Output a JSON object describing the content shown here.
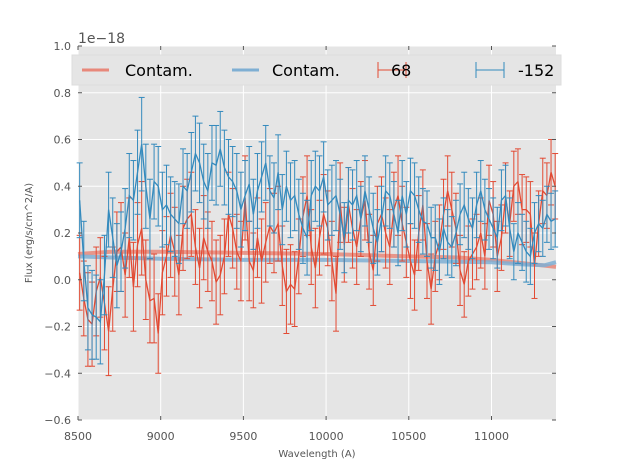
{
  "chart_data": {
    "type": "line",
    "title": "",
    "xlabel": "Wavelength (A)",
    "ylabel": "Flux (erg/s/cm^2/A)",
    "y_offset_label": "1e−18",
    "xlim": [
      8500,
      11390
    ],
    "ylim": [
      -0.6,
      1.0
    ],
    "xticks": [
      8500,
      9000,
      9500,
      10000,
      10500,
      11000
    ],
    "xtick_labels": [
      "8500",
      "9000",
      "9500",
      "10000",
      "10500",
      "11000"
    ],
    "yticks": [
      -0.6,
      -0.4,
      -0.2,
      0.0,
      0.2,
      0.4,
      0.6,
      0.8,
      1.0
    ],
    "ytick_labels": [
      "−0.6",
      "−0.4",
      "−0.2",
      "0.0",
      "0.2",
      "0.4",
      "0.6",
      "0.8",
      "1.0"
    ],
    "grid": true,
    "legend": {
      "placement": "top",
      "entries": [
        {
          "label": "Contam.",
          "kind": "line",
          "color": "#E8887A"
        },
        {
          "label": "Contam.",
          "kind": "line",
          "color": "#7FAFD3"
        },
        {
          "label": "68",
          "kind": "errorbar",
          "color": "#E24A33"
        },
        {
          "label": "-152",
          "kind": "errorbar",
          "color": "#348ABD"
        }
      ]
    },
    "colors": {
      "red": "#E24A33",
      "blue": "#348ABD",
      "red_contam": "#E8887A",
      "blue_contam": "#7FAFD3",
      "plot_bg": "#E5E5E5",
      "grid": "#FFFFFF"
    },
    "x_start": 8510,
    "x_step": 25,
    "series": [
      {
        "name": "68",
        "kind": "errorbar",
        "color": "#E24A33",
        "y": [
          0.03,
          -0.08,
          -0.17,
          -0.19,
          -0.05,
          0.01,
          -0.1,
          -0.22,
          -0.04,
          0.12,
          0.14,
          0.02,
          0.18,
          -0.03,
          0.15,
          0.22,
          0.0,
          -0.09,
          -0.08,
          -0.23,
          0.03,
          0.1,
          0.19,
          0.12,
          0.02,
          0.22,
          0.26,
          0.28,
          0.14,
          0.05,
          0.18,
          0.12,
          0.08,
          -0.01,
          0.02,
          0.1,
          0.28,
          0.22,
          0.12,
          0.08,
          0.35,
          0.08,
          0.04,
          0.18,
          0.08,
          0.16,
          0.23,
          0.2,
          0.24,
          0.06,
          -0.05,
          -0.02,
          -0.04,
          0.1,
          0.27,
          0.36,
          0.14,
          0.05,
          0.18,
          0.28,
          0.22,
          0.08,
          -0.06,
          0.33,
          0.15,
          0.32,
          0.22,
          0.14,
          0.26,
          0.34,
          0.12,
          0.04,
          0.24,
          0.28,
          0.2,
          0.14,
          0.3,
          0.36,
          0.24,
          0.16,
          0.08,
          0.02,
          0.2,
          0.32,
          0.08,
          -0.04,
          0.1,
          0.16,
          0.28,
          0.38,
          0.3,
          0.22,
          0.04,
          -0.02,
          0.08,
          0.11,
          0.14,
          0.2,
          0.1,
          0.34,
          0.28,
          0.1,
          0.18,
          0.35,
          0.24,
          0.4,
          0.42,
          0.3,
          0.3,
          0.28,
          0.06,
          0.24,
          0.38,
          0.36,
          0.46,
          0.4,
          0.34,
          0.36,
          0.44
        ],
        "yerr": [
          0.16,
          0.16,
          0.2,
          0.18,
          0.19,
          0.17,
          0.2,
          0.19,
          0.18,
          0.17,
          0.19,
          0.18,
          0.17,
          0.19,
          0.18,
          0.2,
          0.17,
          0.18,
          0.19,
          0.17,
          0.18,
          0.17,
          0.18,
          0.19,
          0.17,
          0.18,
          0.17,
          0.18,
          0.16,
          0.17,
          0.18,
          0.17,
          0.17,
          0.18,
          0.17,
          0.16,
          0.18,
          0.17,
          0.16,
          0.17,
          0.18,
          0.17,
          0.16,
          0.17,
          0.18,
          0.17,
          0.16,
          0.17,
          0.16,
          0.17,
          0.18,
          0.17,
          0.16,
          0.16,
          0.17,
          0.17,
          0.16,
          0.17,
          0.16,
          0.17,
          0.16,
          0.17,
          0.16,
          0.17,
          0.16,
          0.16,
          0.17,
          0.16,
          0.16,
          0.17,
          0.16,
          0.15,
          0.16,
          0.16,
          0.15,
          0.16,
          0.16,
          0.17,
          0.16,
          0.15,
          0.16,
          0.15,
          0.16,
          0.15,
          0.16,
          0.15,
          0.15,
          0.16,
          0.15,
          0.15,
          0.16,
          0.15,
          0.15,
          0.14,
          0.15,
          0.15,
          0.14,
          0.15,
          0.14,
          0.15,
          0.14,
          0.15,
          0.14,
          0.15,
          0.14,
          0.15,
          0.14,
          0.15,
          0.14,
          0.14,
          0.14,
          0.14,
          0.14,
          0.14,
          0.14,
          0.14,
          0.14,
          0.14,
          0.14
        ]
      },
      {
        "name": "-152",
        "kind": "errorbar",
        "color": "#348ABD",
        "y": [
          0.34,
          0.08,
          -0.12,
          -0.15,
          -0.16,
          -0.18,
          0.02,
          0.3,
          0.18,
          0.06,
          0.12,
          0.22,
          0.36,
          0.34,
          0.46,
          0.58,
          0.4,
          0.26,
          0.42,
          0.4,
          0.3,
          0.32,
          0.28,
          0.26,
          0.24,
          0.4,
          0.38,
          0.46,
          0.54,
          0.5,
          0.42,
          0.38,
          0.5,
          0.49,
          0.56,
          0.48,
          0.44,
          0.42,
          0.38,
          0.3,
          0.36,
          0.41,
          0.28,
          0.38,
          0.44,
          0.5,
          0.38,
          0.35,
          0.46,
          0.3,
          0.4,
          0.34,
          0.36,
          0.28,
          0.22,
          0.18,
          0.36,
          0.4,
          0.38,
          0.44,
          0.32,
          0.34,
          0.36,
          0.28,
          0.18,
          0.34,
          0.32,
          0.36,
          0.26,
          0.38,
          0.3,
          0.22,
          0.16,
          0.26,
          0.38,
          0.36,
          0.28,
          0.2,
          0.36,
          0.28,
          0.38,
          0.36,
          0.3,
          0.25,
          0.24,
          0.18,
          0.18,
          0.12,
          0.22,
          0.16,
          0.14,
          0.2,
          0.28,
          0.32,
          0.26,
          0.22,
          0.32,
          0.38,
          0.3,
          0.26,
          0.22,
          0.18,
          0.34,
          0.36,
          0.22,
          0.12,
          0.2,
          0.16,
          0.12,
          0.1,
          0.2,
          0.24,
          0.22,
          0.28,
          0.25,
          0.26,
          0.22,
          0.3,
          0.24,
          0.22
        ],
        "yerr": [
          0.16,
          0.17,
          0.18,
          0.19,
          0.18,
          0.18,
          0.17,
          0.16,
          0.17,
          0.18,
          0.17,
          0.17,
          0.18,
          0.17,
          0.18,
          0.2,
          0.18,
          0.17,
          0.16,
          0.17,
          0.16,
          0.17,
          0.16,
          0.16,
          0.17,
          0.16,
          0.16,
          0.17,
          0.16,
          0.17,
          0.16,
          0.16,
          0.16,
          0.17,
          0.16,
          0.16,
          0.16,
          0.15,
          0.16,
          0.16,
          0.15,
          0.16,
          0.15,
          0.16,
          0.15,
          0.16,
          0.15,
          0.15,
          0.16,
          0.15,
          0.15,
          0.16,
          0.15,
          0.15,
          0.15,
          0.16,
          0.15,
          0.15,
          0.15,
          0.15,
          0.15,
          0.15,
          0.15,
          0.15,
          0.15,
          0.14,
          0.15,
          0.15,
          0.14,
          0.15,
          0.14,
          0.15,
          0.14,
          0.14,
          0.15,
          0.14,
          0.14,
          0.14,
          0.15,
          0.14,
          0.14,
          0.14,
          0.14,
          0.14,
          0.14,
          0.13,
          0.14,
          0.14,
          0.13,
          0.14,
          0.13,
          0.14,
          0.13,
          0.14,
          0.13,
          0.13,
          0.14,
          0.13,
          0.13,
          0.13,
          0.13,
          0.13,
          0.13,
          0.13,
          0.13,
          0.12,
          0.13,
          0.12,
          0.13,
          0.12,
          0.13,
          0.12,
          0.12,
          0.12,
          0.12,
          0.12,
          0.12,
          0.12,
          0.12,
          0.12
        ]
      },
      {
        "name": "Contam. (68)",
        "kind": "line",
        "color": "#E8887A",
        "x": [
          8500,
          8700,
          9000,
          9500,
          10000,
          10500,
          10800,
          11000,
          11200,
          11390
        ],
        "y": [
          0.11,
          0.12,
          0.12,
          0.115,
          0.11,
          0.1,
          0.095,
          0.085,
          0.07,
          0.055
        ]
      },
      {
        "name": "Contam. (-152)",
        "kind": "line",
        "color": "#7FAFD3",
        "x": [
          8500,
          8700,
          9000,
          9500,
          10000,
          10500,
          11000,
          11200,
          11320,
          11390
        ],
        "y": [
          0.1,
          0.095,
          0.09,
          0.085,
          0.085,
          0.08,
          0.075,
          0.065,
          0.062,
          0.075
        ]
      }
    ]
  }
}
